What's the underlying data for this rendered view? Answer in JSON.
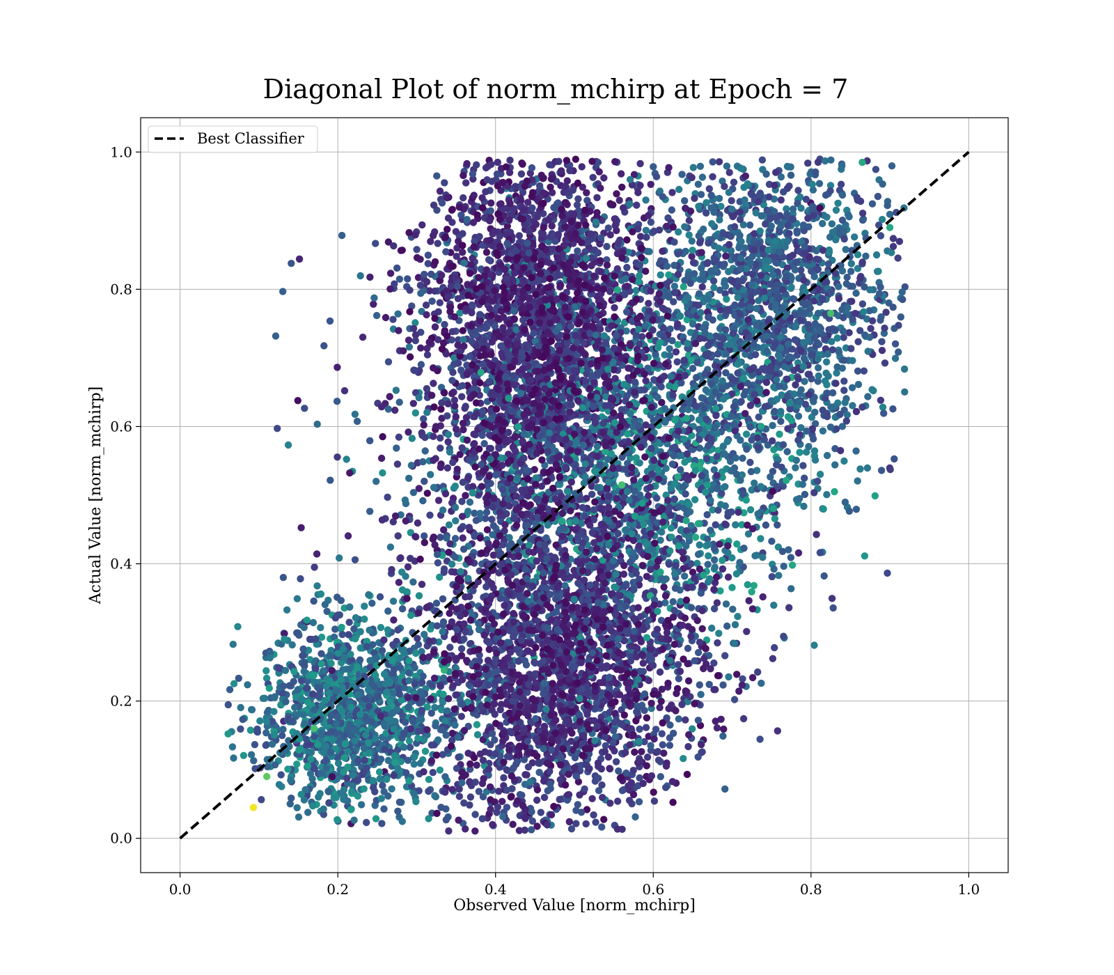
{
  "chart_data": {
    "type": "scatter",
    "title": "Diagonal Plot of norm_mchirp at Epoch = 7",
    "xlabel": "Observed Value [norm_mchirp]",
    "ylabel": "Actual Value [norm_mchirp]",
    "xlim": [
      -0.05,
      1.05
    ],
    "ylim": [
      -0.05,
      1.05
    ],
    "xticks": [
      "0.0",
      "0.2",
      "0.4",
      "0.6",
      "0.8",
      "1.0"
    ],
    "yticks": [
      "0.0",
      "0.2",
      "0.4",
      "0.6",
      "0.8",
      "1.0"
    ],
    "xtick_values": [
      0.0,
      0.2,
      0.4,
      0.6,
      0.8,
      1.0
    ],
    "ytick_values": [
      0.0,
      0.2,
      0.4,
      0.6,
      0.8,
      1.0
    ],
    "grid": true,
    "colormap": "viridis",
    "legend": {
      "placement": "top-left",
      "entries": [
        "Best Classifier"
      ]
    },
    "series": [
      {
        "name": "Best Classifier",
        "kind": "dashed-line",
        "color": "#000000",
        "x": [
          0.0,
          1.0
        ],
        "y": [
          0.0,
          1.0
        ]
      },
      {
        "kind": "scatter",
        "description_of_density": "dense cloud of points along diagonal, dark purple for high density, teal/yellow for sparse",
        "clusters": [
          {
            "cx": 0.45,
            "cy": 0.75,
            "sx": 0.07,
            "sy": 0.14,
            "y_range": [
              0.45,
              0.99
            ],
            "n": 2200,
            "tone": [
              0.02,
              0.25
            ]
          },
          {
            "cx": 0.48,
            "cy": 0.25,
            "sx": 0.08,
            "sy": 0.13,
            "y_range": [
              0.01,
              0.5
            ],
            "n": 2000,
            "tone": [
              0.03,
              0.28
            ]
          },
          {
            "cx": 0.75,
            "cy": 0.78,
            "sx": 0.08,
            "sy": 0.12,
            "y_range": [
              0.5,
              0.99
            ],
            "n": 1500,
            "tone": [
              0.15,
              0.45
            ]
          },
          {
            "cx": 0.22,
            "cy": 0.18,
            "sx": 0.06,
            "sy": 0.07,
            "y_range": [
              0.02,
              0.4
            ],
            "n": 1300,
            "tone": [
              0.2,
              0.55
            ]
          },
          {
            "cx": 0.5,
            "cy": 0.5,
            "sx": 0.12,
            "sy": 0.2,
            "y_range": [
              0.01,
              0.99
            ],
            "n": 1800,
            "tone": [
              0.05,
              0.5
            ]
          },
          {
            "cx": 0.6,
            "cy": 0.55,
            "sx": 0.1,
            "sy": 0.12,
            "y_range": [
              0.2,
              0.9
            ],
            "n": 900,
            "tone": [
              0.2,
              0.6
            ]
          }
        ],
        "highlights": [
          {
            "x": 0.093,
            "y": 0.045,
            "tone": 0.98
          },
          {
            "x": 0.335,
            "y": 0.245,
            "tone": 0.65
          },
          {
            "x": 0.56,
            "y": 0.515,
            "tone": 0.7
          },
          {
            "x": 0.825,
            "y": 0.765,
            "tone": 0.7
          },
          {
            "x": 0.865,
            "y": 0.985,
            "tone": 0.6
          },
          {
            "x": 0.9,
            "y": 0.89,
            "tone": 0.6
          },
          {
            "x": 0.17,
            "y": 0.16,
            "tone": 0.7
          },
          {
            "x": 0.11,
            "y": 0.09,
            "tone": 0.75
          }
        ]
      }
    ]
  }
}
